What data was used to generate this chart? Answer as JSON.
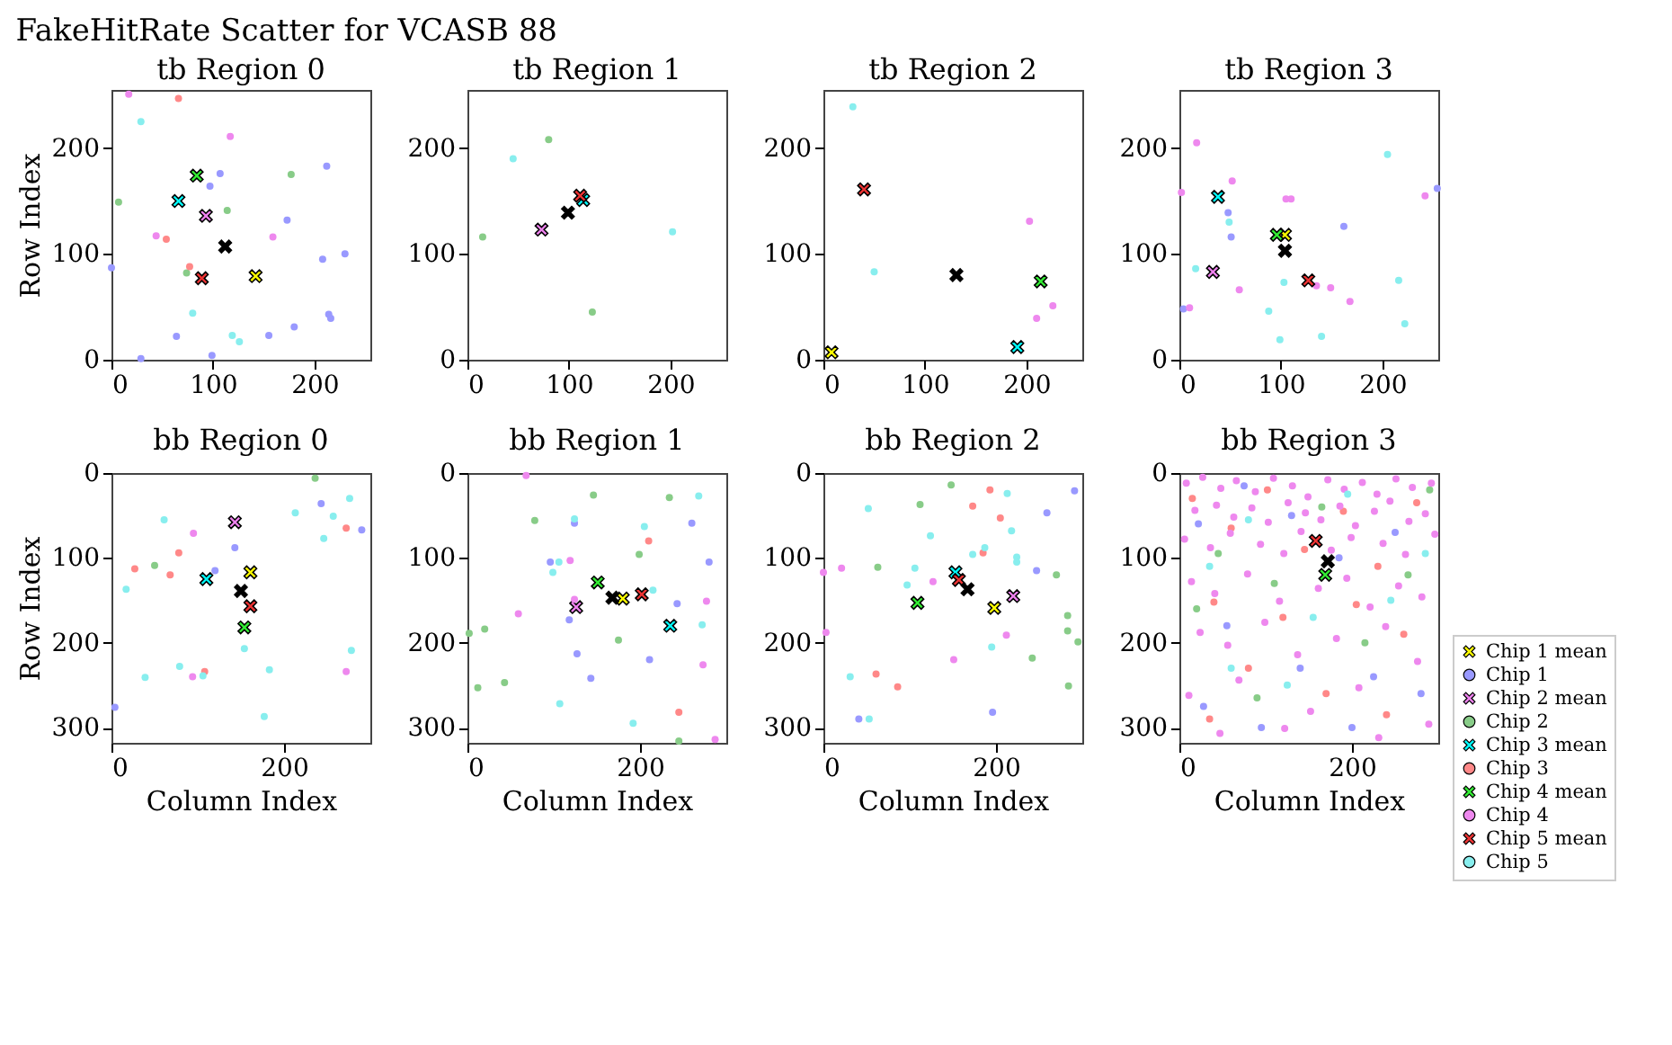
{
  "chart_data": [
    {
      "type": "scatter",
      "title": "tb Region 0",
      "ylabel": "Row Index",
      "annotations": [
        "FakeHitRate Scatter for VCASB 88"
      ],
      "xlim": [
        0,
        255
      ],
      "ylim": [
        0,
        255
      ],
      "xticks": [
        0,
        100,
        200
      ],
      "yticks": [
        0,
        100,
        200
      ],
      "series": [
        {
          "color": "#ffff00",
          "marker": "cross",
          "x": [
            142
          ],
          "values": [
            79
          ]
        },
        {
          "color": "#9999ff",
          "marker": "circle",
          "x": [
            107,
            97,
            173,
            208,
            230,
            212,
            214,
            216,
            180,
            155,
            64,
            99,
            29,
            0
          ],
          "values": [
            176,
            164,
            132,
            95,
            100,
            183,
            43,
            39,
            31,
            23,
            22,
            4,
            1,
            87
          ]
        },
        {
          "color": "#ee82ee",
          "marker": "cross",
          "x": [
            93
          ],
          "values": [
            136
          ]
        },
        {
          "color": "#88cc88",
          "marker": "circle",
          "x": [
            7,
            114,
            177,
            74
          ],
          "values": [
            149,
            141,
            175,
            82
          ]
        },
        {
          "color": "#00ffff",
          "marker": "cross",
          "x": [
            66
          ],
          "values": [
            150
          ]
        },
        {
          "color": "#ff8888",
          "marker": "circle",
          "x": [
            66,
            54,
            77
          ],
          "values": [
            247,
            114,
            88
          ]
        },
        {
          "color": "#33ee33",
          "marker": "cross",
          "x": [
            84
          ],
          "values": [
            174
          ]
        },
        {
          "color": "#ee88ee",
          "marker": "circle",
          "x": [
            17,
            44,
            117,
            159
          ],
          "values": [
            251,
            117,
            211,
            116
          ]
        },
        {
          "color": "#ee3333",
          "marker": "cross",
          "x": [
            89
          ],
          "values": [
            77
          ]
        },
        {
          "color": "#88eeee",
          "marker": "circle",
          "x": [
            29,
            80,
            119,
            126
          ],
          "values": [
            225,
            44,
            23,
            17
          ]
        },
        {
          "color": "#000000",
          "marker": "cross",
          "x": [
            112
          ],
          "values": [
            107
          ]
        }
      ]
    },
    {
      "type": "scatter",
      "title": "tb Region 1",
      "xlim": [
        0,
        255
      ],
      "ylim": [
        0,
        255
      ],
      "xticks": [
        0,
        100,
        200
      ],
      "yticks": [
        0,
        100,
        200
      ],
      "series": [
        {
          "color": "#ee82ee",
          "marker": "cross",
          "x": [
            73
          ],
          "values": [
            123
          ]
        },
        {
          "color": "#88cc88",
          "marker": "circle",
          "x": [
            80,
            15,
            123
          ],
          "values": [
            208,
            116,
            45
          ]
        },
        {
          "color": "#00ffff",
          "marker": "cross",
          "x": [
            114
          ],
          "values": [
            151
          ]
        },
        {
          "color": "#ee3333",
          "marker": "cross",
          "x": [
            111
          ],
          "values": [
            155
          ]
        },
        {
          "color": "#88eeee",
          "marker": "circle",
          "x": [
            45,
            202
          ],
          "values": [
            190,
            121
          ]
        },
        {
          "color": "#000000",
          "marker": "cross",
          "x": [
            99
          ],
          "values": [
            139
          ]
        }
      ]
    },
    {
      "type": "scatter",
      "title": "tb Region 2",
      "xlim": [
        0,
        255
      ],
      "ylim": [
        0,
        255
      ],
      "xticks": [
        0,
        100,
        200
      ],
      "yticks": [
        0,
        100,
        200
      ],
      "series": [
        {
          "color": "#ffff00",
          "marker": "cross",
          "x": [
            8
          ],
          "values": [
            7
          ]
        },
        {
          "color": "#00ffff",
          "marker": "cross",
          "x": [
            191
          ],
          "values": [
            12
          ]
        },
        {
          "color": "#33ee33",
          "marker": "cross",
          "x": [
            214
          ],
          "values": [
            74
          ]
        },
        {
          "color": "#ee88ee",
          "marker": "circle",
          "x": [
            203,
            210,
            226
          ],
          "values": [
            131,
            39,
            51
          ]
        },
        {
          "color": "#ee3333",
          "marker": "cross",
          "x": [
            40
          ],
          "values": [
            161
          ]
        },
        {
          "color": "#88eeee",
          "marker": "circle",
          "x": [
            29,
            50
          ],
          "values": [
            239,
            83
          ]
        },
        {
          "color": "#000000",
          "marker": "cross",
          "x": [
            131
          ],
          "values": [
            80
          ]
        }
      ]
    },
    {
      "type": "scatter",
      "title": "tb Region 3",
      "xlim": [
        0,
        255
      ],
      "ylim": [
        0,
        255
      ],
      "xticks": [
        0,
        100,
        200
      ],
      "yticks": [
        0,
        100,
        200
      ],
      "series": [
        {
          "color": "#ffff00",
          "marker": "cross",
          "x": [
            104
          ],
          "values": [
            118
          ]
        },
        {
          "color": "#9999ff",
          "marker": "circle",
          "x": [
            48,
            51,
            162,
            254,
            4
          ],
          "values": [
            139,
            116,
            126,
            162,
            48
          ]
        },
        {
          "color": "#ee82ee",
          "marker": "cross",
          "x": [
            33
          ],
          "values": [
            83
          ]
        },
        {
          "color": "#00ffff",
          "marker": "cross",
          "x": [
            38
          ],
          "values": [
            154
          ]
        },
        {
          "color": "#33ee33",
          "marker": "cross",
          "x": [
            96
          ],
          "values": [
            118
          ]
        },
        {
          "color": "#ee88ee",
          "marker": "circle",
          "x": [
            17,
            2,
            52,
            105,
            110,
            59,
            135,
            149,
            168,
            242,
            10
          ],
          "values": [
            205,
            158,
            169,
            152,
            152,
            66,
            70,
            68,
            55,
            155,
            49
          ]
        },
        {
          "color": "#ee3333",
          "marker": "cross",
          "x": [
            127
          ],
          "values": [
            75
          ]
        },
        {
          "color": "#88eeee",
          "marker": "circle",
          "x": [
            16,
            49,
            103,
            88,
            99,
            140,
            205,
            216,
            222
          ],
          "values": [
            86,
            130,
            73,
            46,
            19,
            22,
            194,
            75,
            34
          ]
        },
        {
          "color": "#000000",
          "marker": "cross",
          "x": [
            104
          ],
          "values": [
            103
          ]
        }
      ]
    },
    {
      "type": "scatter",
      "title": "bb Region 0",
      "xlabel": "Column Index",
      "ylabel": "Row Index",
      "xlim": [
        0,
        300
      ],
      "ylim": [
        318,
        0
      ],
      "xticks": [
        0,
        200
      ],
      "yticks": [
        0,
        100,
        200,
        300
      ],
      "series": [
        {
          "color": "#ffff00",
          "marker": "cross",
          "x": [
            161
          ],
          "values": [
            117
          ]
        },
        {
          "color": "#9999ff",
          "marker": "circle",
          "x": [
            243,
            143,
            120,
            290,
            4
          ],
          "values": [
            36,
            88,
            115,
            67,
            276
          ]
        },
        {
          "color": "#ee82ee",
          "marker": "cross",
          "x": [
            143
          ],
          "values": [
            58
          ]
        },
        {
          "color": "#88cc88",
          "marker": "circle",
          "x": [
            236,
            50
          ],
          "values": [
            6,
            109
          ]
        },
        {
          "color": "#00ffff",
          "marker": "cross",
          "x": [
            110
          ],
          "values": [
            125
          ]
        },
        {
          "color": "#ff8888",
          "marker": "circle",
          "x": [
            78,
            27,
            68,
            272,
            108
          ],
          "values": [
            94,
            113,
            120,
            65,
            234
          ]
        },
        {
          "color": "#33ee33",
          "marker": "cross",
          "x": [
            154
          ],
          "values": [
            182
          ]
        },
        {
          "color": "#ee88ee",
          "marker": "circle",
          "x": [
            95,
            94,
            272
          ],
          "values": [
            71,
            240,
            234
          ]
        },
        {
          "color": "#ee3333",
          "marker": "cross",
          "x": [
            161
          ],
          "values": [
            157
          ]
        },
        {
          "color": "#88eeee",
          "marker": "circle",
          "x": [
            61,
            213,
            257,
            276,
            246,
            17,
            79,
            39,
            106,
            154,
            183,
            278,
            177
          ],
          "values": [
            55,
            47,
            51,
            30,
            77,
            137,
            228,
            241,
            239,
            207,
            232,
            209,
            287
          ]
        },
        {
          "color": "#000000",
          "marker": "cross",
          "x": [
            150
          ],
          "values": [
            139
          ]
        }
      ]
    },
    {
      "type": "scatter",
      "title": "bb Region 1",
      "xlabel": "Column Index",
      "xlim": [
        0,
        300
      ],
      "ylim": [
        318,
        0
      ],
      "xticks": [
        0,
        200
      ],
      "yticks": [
        0,
        100,
        200,
        300
      ],
      "series": [
        {
          "color": "#ffff00",
          "marker": "cross",
          "x": [
            180
          ],
          "values": [
            148
          ]
        },
        {
          "color": "#9999ff",
          "marker": "circle",
          "x": [
            124,
            96,
            260,
            280,
            118,
            243,
            127,
            211,
            143
          ],
          "values": [
            59,
            105,
            59,
            105,
            173,
            154,
            213,
            220,
            242
          ]
        },
        {
          "color": "#ee82ee",
          "marker": "cross",
          "x": [
            126
          ],
          "values": [
            158
          ]
        },
        {
          "color": "#88cc88",
          "marker": "circle",
          "x": [
            146,
            78,
            234,
            199,
            2,
            20,
            175,
            12,
            43,
            245
          ],
          "values": [
            26,
            56,
            29,
            96,
            189,
            184,
            197,
            253,
            247,
            316
          ]
        },
        {
          "color": "#00ffff",
          "marker": "cross",
          "x": [
            235
          ],
          "values": [
            180
          ]
        },
        {
          "color": "#ff8888",
          "marker": "circle",
          "x": [
            210,
            245
          ],
          "values": [
            80,
            282
          ]
        },
        {
          "color": "#33ee33",
          "marker": "cross",
          "x": [
            151
          ],
          "values": [
            129
          ]
        },
        {
          "color": "#ee88ee",
          "marker": "circle",
          "x": [
            68,
            119,
            59,
            124,
            277,
            273,
            287
          ],
          "values": [
            3,
            103,
            166,
            149,
            151,
            226,
            314
          ]
        },
        {
          "color": "#ee3333",
          "marker": "cross",
          "x": [
            202
          ],
          "values": [
            143
          ]
        },
        {
          "color": "#88eeee",
          "marker": "circle",
          "x": [
            124,
            99,
            106,
            268,
            205,
            215,
            272,
            107,
            192
          ],
          "values": [
            54,
            117,
            105,
            27,
            63,
            138,
            179,
            272,
            295
          ]
        },
        {
          "color": "#000000",
          "marker": "cross",
          "x": [
            168
          ],
          "values": [
            147
          ]
        }
      ]
    },
    {
      "type": "scatter",
      "title": "bb Region 2",
      "xlabel": "Column Index",
      "xlim": [
        0,
        300
      ],
      "ylim": [
        318,
        0
      ],
      "xticks": [
        0,
        200
      ],
      "yticks": [
        0,
        100,
        200,
        300
      ],
      "series": [
        {
          "color": "#ffff00",
          "marker": "cross",
          "x": [
            198
          ],
          "values": [
            159
          ]
        },
        {
          "color": "#9999ff",
          "marker": "circle",
          "x": [
            291,
            259,
            247,
            196,
            41
          ],
          "values": [
            21,
            47,
            115,
            282,
            290
          ]
        },
        {
          "color": "#ee82ee",
          "marker": "cross",
          "x": [
            220
          ],
          "values": [
            145
          ]
        },
        {
          "color": "#88cc88",
          "marker": "circle",
          "x": [
            148,
            112,
            63,
            270,
            283,
            283,
            295,
            242,
            284
          ],
          "values": [
            14,
            37,
            111,
            120,
            168,
            186,
            199,
            218,
            251
          ]
        },
        {
          "color": "#00ffff",
          "marker": "cross",
          "x": [
            153
          ],
          "values": [
            117
          ]
        },
        {
          "color": "#ff8888",
          "marker": "circle",
          "x": [
            193,
            173,
            205,
            185,
            61,
            86
          ],
          "values": [
            20,
            39,
            53,
            94,
            237,
            252
          ]
        },
        {
          "color": "#33ee33",
          "marker": "cross",
          "x": [
            109
          ],
          "values": [
            153
          ]
        },
        {
          "color": "#ee88ee",
          "marker": "circle",
          "x": [
            21,
            127,
            3,
            212,
            151,
            0
          ],
          "values": [
            112,
            128,
            188,
            191,
            220,
            117
          ]
        },
        {
          "color": "#ee3333",
          "marker": "cross",
          "x": [
            157
          ],
          "values": [
            126
          ]
        },
        {
          "color": "#88eeee",
          "marker": "circle",
          "x": [
            213,
            52,
            218,
            124,
            187,
            173,
            224,
            224,
            106,
            97,
            195,
            31,
            53
          ],
          "values": [
            24,
            42,
            68,
            74,
            88,
            96,
            99,
            105,
            112,
            132,
            205,
            240,
            290
          ]
        },
        {
          "color": "#000000",
          "marker": "cross",
          "x": [
            167
          ],
          "values": [
            137
          ]
        }
      ]
    },
    {
      "type": "scatter",
      "title": "bb Region 3",
      "xlabel": "Column Index",
      "legend": "bottom right",
      "xlim": [
        0,
        300
      ],
      "ylim": [
        318,
        0
      ],
      "xticks": [
        0,
        200
      ],
      "yticks": [
        0,
        100,
        200,
        300
      ],
      "series": [
        {
          "name": "Chip 1 mean",
          "color": "#ffff00",
          "marker": "cross"
        },
        {
          "name": "Chip 1",
          "color": "#9999ff",
          "marker": "circle",
          "x": [
            22,
            75,
            130,
            185,
            250,
            55,
            140,
            225,
            28,
            95,
            200,
            280
          ],
          "values": [
            60,
            15,
            50,
            100,
            70,
            180,
            230,
            240,
            275,
            300,
            300,
            260
          ]
        },
        {
          "name": "Chip 2 mean",
          "color": "#ee82ee",
          "marker": "cross"
        },
        {
          "name": "Chip 2",
          "color": "#88cc88",
          "marker": "circle",
          "x": [
            45,
            110,
            165,
            215,
            265,
            90,
            20,
            290
          ],
          "values": [
            95,
            130,
            40,
            200,
            120,
            265,
            160,
            20
          ]
        },
        {
          "name": "Chip 3 mean",
          "color": "#00ffff",
          "marker": "cross"
        },
        {
          "name": "Chip 3",
          "color": "#ff8888",
          "marker": "circle",
          "x": [
            15,
            60,
            102,
            145,
            190,
            230,
            275,
            40,
            120,
            205,
            260,
            80,
            170,
            35,
            240
          ],
          "values": [
            30,
            65,
            20,
            90,
            45,
            110,
            35,
            152,
            170,
            155,
            190,
            230,
            260,
            290,
            285
          ]
        },
        {
          "name": "Chip 4 mean",
          "color": "#33ee33",
          "marker": "cross",
          "x": [
            169
          ],
          "values": [
            120
          ]
        },
        {
          "name": "Chip 4",
          "color": "#ee88ee",
          "marker": "circle",
          "x": [
            8,
            27,
            48,
            66,
            88,
            109,
            131,
            149,
            172,
            191,
            212,
            229,
            251,
            270,
            292,
            18,
            43,
            63,
            84,
            103,
            126,
            146,
            164,
            186,
            204,
            226,
            244,
            266,
            285,
            6,
            36,
            59,
            94,
            121,
            141,
            176,
            199,
            236,
            262,
            296,
            14,
            41,
            79,
            116,
            161,
            194,
            221,
            254,
            281,
            24,
            56,
            99,
            137,
            182,
            239,
            276,
            11,
            69,
            152,
            208,
            289,
            47,
            122,
            231
          ],
          "values": [
            12,
            5,
            18,
            9,
            22,
            6,
            15,
            28,
            8,
            19,
            11,
            25,
            7,
            17,
            12,
            44,
            38,
            52,
            41,
            58,
            35,
            47,
            55,
            39,
            62,
            45,
            33,
            57,
            48,
            78,
            88,
            71,
            84,
            95,
            69,
            91,
            76,
            83,
            96,
            72,
            128,
            142,
            119,
            151,
            136,
            124,
            158,
            133,
            146,
            188,
            203,
            176,
            214,
            195,
            181,
            222,
            262,
            244,
            281,
            253,
            296,
            307,
            301,
            312
          ]
        },
        {
          "name": "Chip 5 mean",
          "color": "#ee3333",
          "marker": "cross",
          "x": [
            158
          ],
          "values": [
            80
          ]
        },
        {
          "name": "Chip 5",
          "color": "#88eeee",
          "marker": "circle",
          "x": [
            35,
            80,
            155,
            195,
            245,
            125,
            60,
            285
          ],
          "values": [
            110,
            55,
            170,
            25,
            150,
            250,
            230,
            95
          ]
        },
        {
          "color": "#000000",
          "marker": "cross",
          "x": [
            172
          ],
          "values": [
            104
          ]
        }
      ]
    }
  ]
}
